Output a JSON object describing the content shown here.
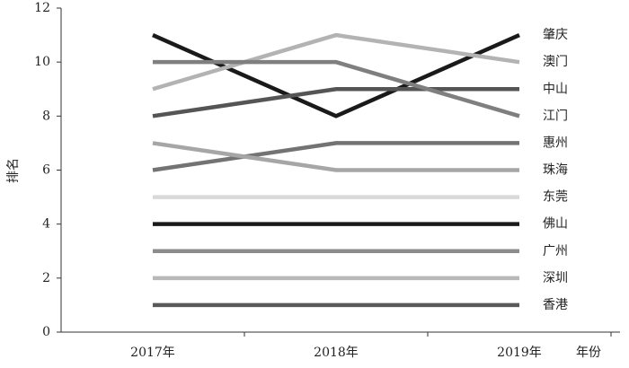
{
  "chart_data": {
    "type": "line",
    "x_label": "年份",
    "y_label": "排名",
    "categories": [
      "2017年",
      "2018年",
      "2019年"
    ],
    "ylim": [
      0,
      12
    ],
    "yticks": [
      0,
      2,
      4,
      6,
      8,
      10,
      12
    ],
    "series": [
      {
        "name": "肇庆",
        "color": "#1a1a1a",
        "values": [
          11,
          8,
          11
        ]
      },
      {
        "name": "澳门",
        "color": "#b3b3b3",
        "values": [
          9,
          11,
          10
        ]
      },
      {
        "name": "中山",
        "color": "#555555",
        "values": [
          8,
          9,
          9
        ]
      },
      {
        "name": "江门",
        "color": "#7f7f7f",
        "values": [
          10,
          10,
          8
        ]
      },
      {
        "name": "惠州",
        "color": "#737373",
        "values": [
          6,
          7,
          7
        ]
      },
      {
        "name": "珠海",
        "color": "#a6a6a6",
        "values": [
          7,
          6,
          6
        ]
      },
      {
        "name": "东莞",
        "color": "#d9d9d9",
        "values": [
          5,
          5,
          5
        ]
      },
      {
        "name": "佛山",
        "color": "#1a1a1a",
        "values": [
          4,
          4,
          4
        ]
      },
      {
        "name": "广州",
        "color": "#8c8c8c",
        "values": [
          3,
          3,
          3
        ]
      },
      {
        "name": "深圳",
        "color": "#b8b8b8",
        "values": [
          2,
          2,
          2
        ]
      },
      {
        "name": "香港",
        "color": "#595959",
        "values": [
          1,
          1,
          1
        ]
      }
    ]
  }
}
